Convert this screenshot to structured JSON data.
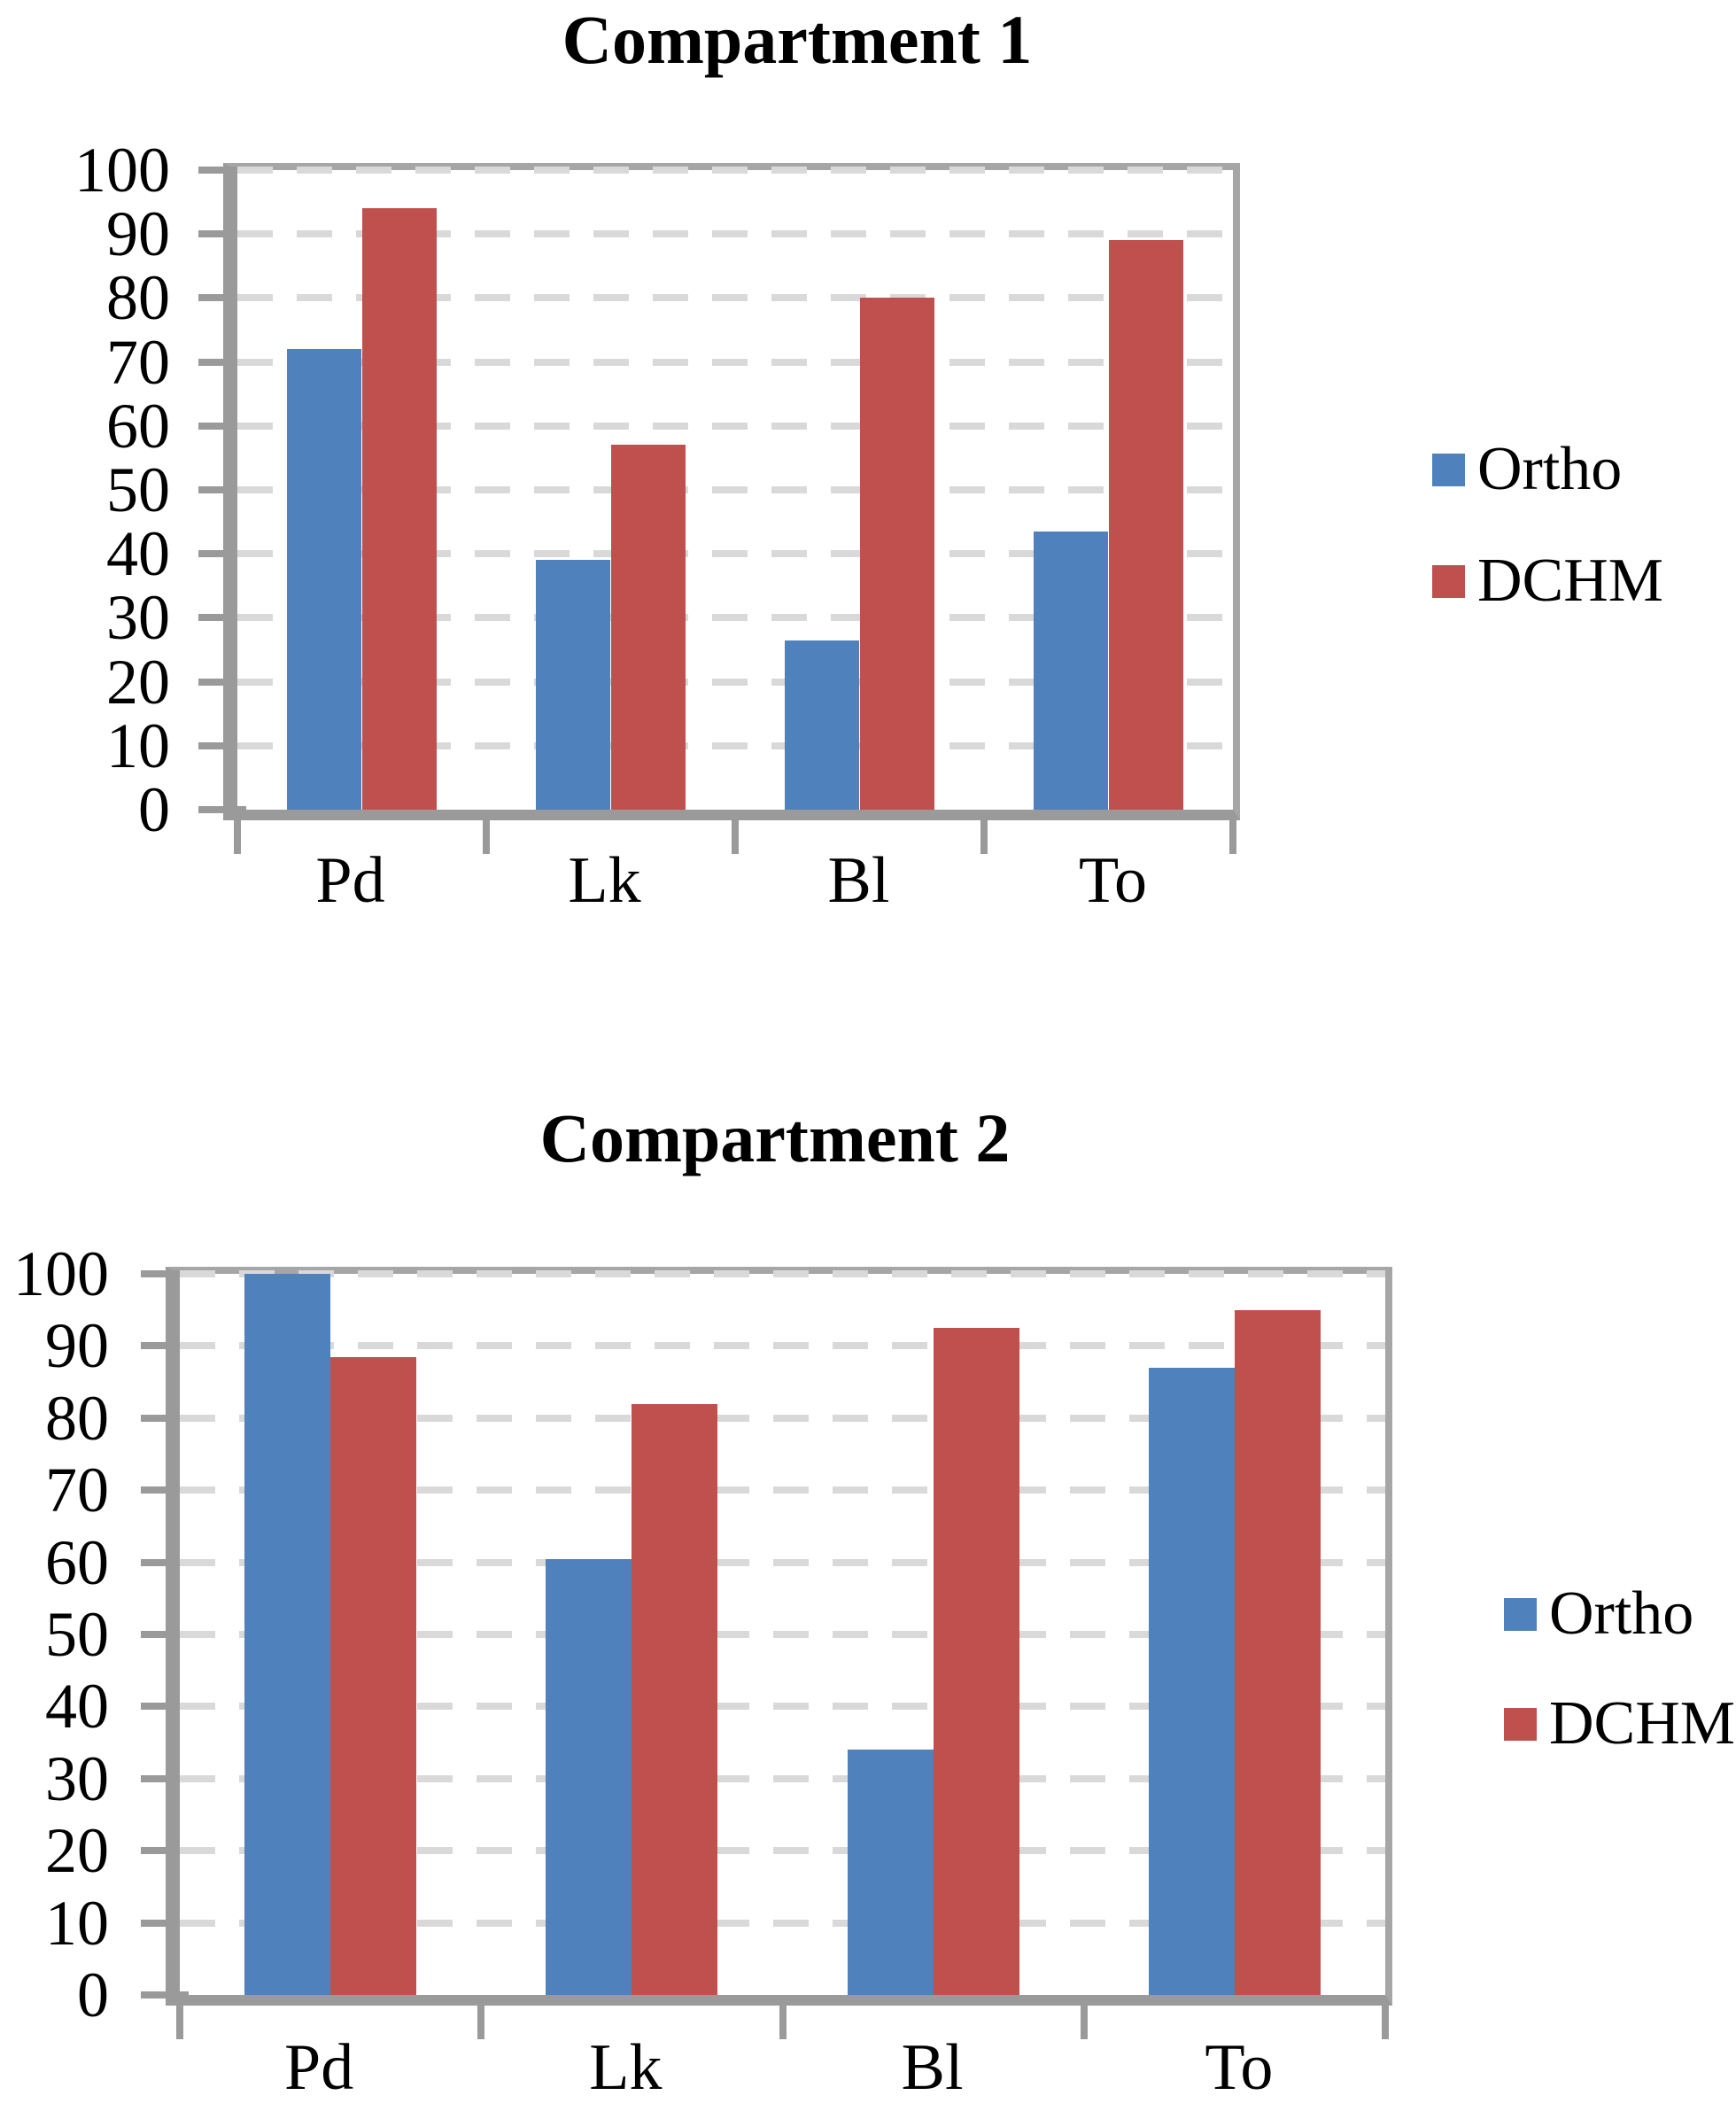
{
  "style": {
    "background": "#FFFFFF",
    "ortho_color": "#4F81BD",
    "dchm_color": "#C0504D",
    "axis_color": "#9A9A9A",
    "border_color": "#A6A6A6",
    "gridline_color": "#D9D9D9",
    "text_color": "#000000"
  },
  "chart_data": [
    {
      "type": "bar",
      "title": "Compartment 1",
      "categories": [
        "Pd",
        "Lk",
        "Bl",
        "To"
      ],
      "series": [
        {
          "name": "Ortho",
          "color": "#4F81BD",
          "values": [
            72,
            39,
            26.5,
            43.5
          ]
        },
        {
          "name": "DCHM",
          "color": "#C0504D",
          "values": [
            94,
            57,
            80,
            89
          ]
        }
      ],
      "xlabel": "",
      "ylabel": "",
      "ylim": [
        0,
        100
      ],
      "ytick_step": 10,
      "yticks": [
        "0",
        "10",
        "20",
        "30",
        "40",
        "50",
        "60",
        "70",
        "80",
        "90",
        "100"
      ],
      "grid": "dashed-horizontal",
      "legend_position": "right"
    },
    {
      "type": "bar",
      "title": "Compartment 2",
      "categories": [
        "Pd",
        "Lk",
        "Bl",
        "To"
      ],
      "series": [
        {
          "name": "Ortho",
          "color": "#4F81BD",
          "values": [
            100,
            60.5,
            34,
            87
          ]
        },
        {
          "name": "DCHM",
          "color": "#C0504D",
          "values": [
            88.5,
            82,
            92.5,
            95
          ]
        }
      ],
      "xlabel": "",
      "ylabel": "",
      "ylim": [
        0,
        100
      ],
      "ytick_step": 10,
      "yticks": [
        "0",
        "10",
        "20",
        "30",
        "40",
        "50",
        "60",
        "70",
        "80",
        "90",
        "100"
      ],
      "grid": "dashed-horizontal",
      "legend_position": "right"
    }
  ]
}
